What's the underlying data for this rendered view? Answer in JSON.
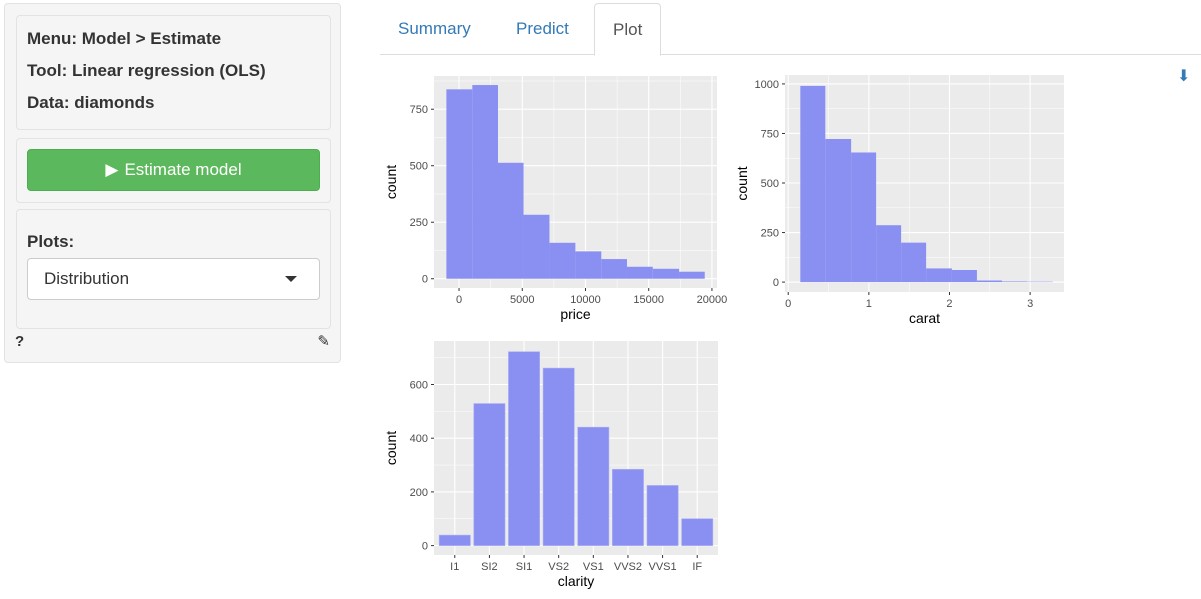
{
  "sidebar": {
    "menu": "Menu: Model > Estimate",
    "tool": "Tool: Linear regression (OLS)",
    "data": "Data: diamonds",
    "estimate_button": "Estimate model",
    "plots_label": "Plots:",
    "plots_value": "Distribution",
    "help": "?"
  },
  "tabs": [
    {
      "label": "Summary"
    },
    {
      "label": "Predict"
    },
    {
      "label": "Plot",
      "active": true
    }
  ],
  "colors": {
    "bar": "#8a8ff2",
    "panel": "#ebebeb",
    "button": "#5cb85c",
    "link": "#337ab7"
  },
  "chart_data": [
    {
      "type": "bar",
      "subtype": "histogram",
      "xlabel": "price",
      "ylabel": "count",
      "xlim": [
        -1980,
        20400
      ],
      "ylim": [
        -41,
        897
      ],
      "xticks": [
        0,
        5000,
        10000,
        15000,
        20000
      ],
      "xtick_labels": [
        "0",
        "5000",
        "10000",
        "15000",
        "20000"
      ],
      "yticks": [
        0,
        250,
        500,
        750
      ],
      "ytick_labels": [
        "0",
        "250",
        "500",
        "750"
      ],
      "bin_edges": [
        -1000,
        1050,
        3080,
        5100,
        7150,
        9200,
        11250,
        13280,
        15320,
        17400,
        19430
      ],
      "values": [
        838,
        857,
        513,
        283,
        159,
        121,
        87,
        53,
        44,
        31
      ],
      "grid": true
    },
    {
      "type": "bar",
      "subtype": "histogram",
      "xlabel": "carat",
      "ylabel": "count",
      "xlim": [
        -0.04,
        3.42
      ],
      "ylim": [
        -50,
        1045
      ],
      "xticks": [
        0,
        1,
        2,
        3
      ],
      "xtick_labels": [
        "0",
        "1",
        "2",
        "3"
      ],
      "yticks": [
        0,
        250,
        500,
        750,
        1000
      ],
      "ytick_labels": [
        "0",
        "250",
        "500",
        "750",
        "1000"
      ],
      "bin_edges": [
        0.15,
        0.46,
        0.78,
        1.09,
        1.4,
        1.71,
        2.03,
        2.34,
        2.65,
        2.96,
        3.28
      ],
      "values": [
        990,
        722,
        654,
        287,
        199,
        69,
        61,
        8,
        3,
        2
      ],
      "grid": true
    },
    {
      "type": "bar",
      "xlabel": "clarity",
      "ylabel": "count",
      "ylim": [
        -35,
        762
      ],
      "categories": [
        "I1",
        "SI2",
        "SI1",
        "VS2",
        "VS1",
        "VVS2",
        "VVS1",
        "IF"
      ],
      "yticks": [
        0,
        200,
        400,
        600
      ],
      "ytick_labels": [
        "0",
        "200",
        "400",
        "600"
      ],
      "values": [
        39,
        529,
        722,
        661,
        441,
        284,
        224,
        100
      ],
      "grid": true
    }
  ]
}
